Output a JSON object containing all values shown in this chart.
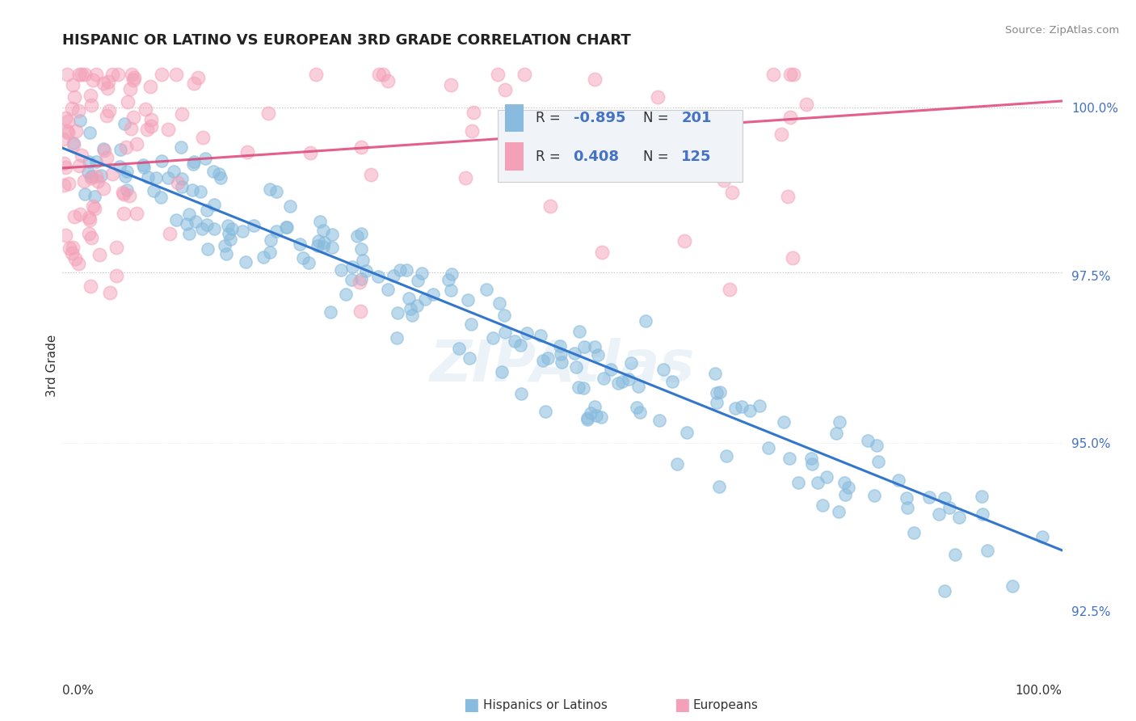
{
  "title": "HISPANIC OR LATINO VS EUROPEAN 3RD GRADE CORRELATION CHART",
  "source_text": "Source: ZipAtlas.com",
  "ylabel": "3rd Grade",
  "ytick_labels": [
    "92.5%",
    "95.0%",
    "97.5%",
    "100.0%"
  ],
  "ytick_values": [
    0.925,
    0.95,
    0.975,
    1.0
  ],
  "xmin": 0.0,
  "xmax": 1.0,
  "ymin": 0.915,
  "ymax": 1.008,
  "blue_R": -0.895,
  "blue_N": 201,
  "pink_R": 0.408,
  "pink_N": 125,
  "blue_color": "#88bbdd",
  "pink_color": "#f4a0b8",
  "blue_line_color": "#3377cc",
  "pink_line_color": "#dd4477",
  "legend_label_blue": "Hispanics or Latinos",
  "legend_label_pink": "Europeans",
  "blue_intercept": 0.994,
  "blue_slope": -0.062,
  "pink_intercept": 0.992,
  "pink_slope": 0.008,
  "watermark": "ZIPAtlas",
  "background_color": "#ffffff"
}
